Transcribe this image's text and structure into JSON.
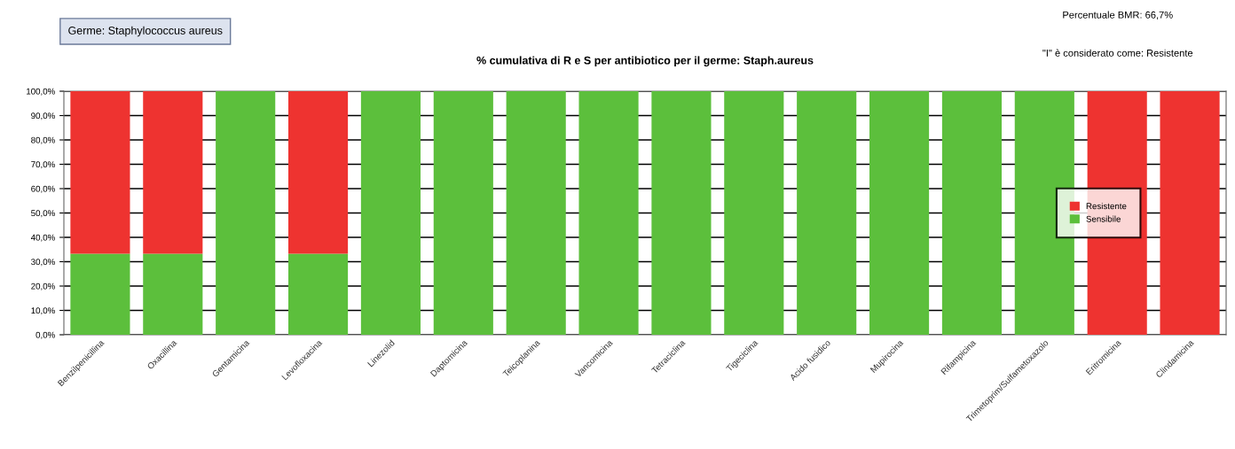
{
  "chart_data": {
    "type": "bar",
    "stacked": true,
    "title": "% cumulativa di R e S per antibiotico per il germe: Staph.aureus",
    "annotations": [
      "Germe: Staphylococcus aureus",
      "Percentuale BMR: 66,7%",
      "\"I\" è considerato come: Resistente"
    ],
    "categories": [
      "Benzilpenicillina",
      "Oxacillina",
      "Gentamicina",
      "Levofloxacina",
      "Linezolid",
      "Daptomicina",
      "Teicoplanina",
      "Vancomicina",
      "Tetraciclina",
      "Tigeciclina",
      "Acido fusidico",
      "Mupirocina",
      "Rifampicina",
      "Trimetoprim/Sulfametoxazolo",
      "Eritromicina",
      "Clindamicina"
    ],
    "series": [
      {
        "name": "Sensibile",
        "color": "#5cbf3c",
        "values": [
          33.3,
          33.3,
          100,
          33.3,
          100,
          100,
          100,
          100,
          100,
          100,
          100,
          100,
          100,
          100,
          0,
          0
        ]
      },
      {
        "name": "Resistente",
        "color": "#ee3330",
        "values": [
          66.7,
          66.7,
          0,
          66.7,
          0,
          0,
          0,
          0,
          0,
          0,
          0,
          0,
          0,
          0,
          100,
          100
        ]
      }
    ],
    "ylim": [
      0,
      100
    ],
    "yticks": [
      {
        "value": 0,
        "label": "0,0%"
      },
      {
        "value": 10,
        "label": "10,0%"
      },
      {
        "value": 20,
        "label": "20,0%"
      },
      {
        "value": 30,
        "label": "30,0%"
      },
      {
        "value": 40,
        "label": "40,0%"
      },
      {
        "value": 50,
        "label": "50,0%"
      },
      {
        "value": 60,
        "label": "60,0%"
      },
      {
        "value": 70,
        "label": "70,0%"
      },
      {
        "value": 80,
        "label": "80,0%"
      },
      {
        "value": 90,
        "label": "90,0%"
      },
      {
        "value": 100,
        "label": "100,0%"
      }
    ],
    "grid": "y",
    "legend": "center right"
  }
}
